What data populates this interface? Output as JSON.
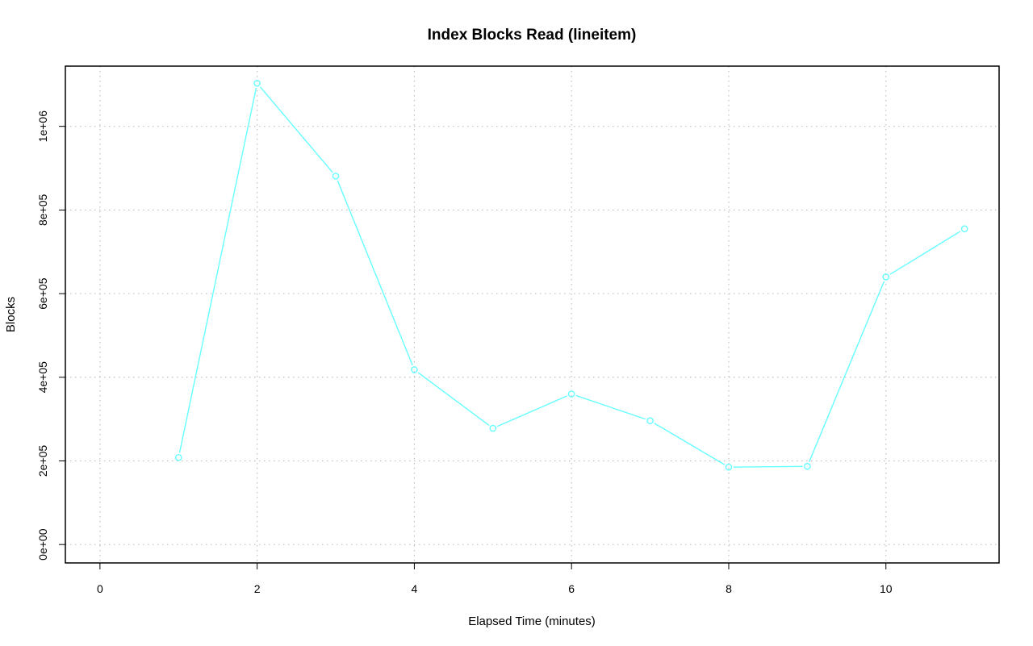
{
  "chart_data": {
    "type": "line",
    "title": "Index Blocks Read (lineitem)",
    "xlabel": "Elapsed Time (minutes)",
    "ylabel": "Blocks",
    "xlim": [
      -0.44,
      11.44
    ],
    "ylim": [
      -44000,
      1144000
    ],
    "x_ticks": [
      0,
      2,
      4,
      6,
      8,
      10
    ],
    "x_tick_labels": [
      "0",
      "2",
      "4",
      "6",
      "8",
      "10"
    ],
    "y_ticks": [
      0,
      200000,
      400000,
      600000,
      800000,
      1000000
    ],
    "y_tick_labels": [
      "0e+00",
      "2e+05",
      "4e+05",
      "6e+05",
      "8e+05",
      "1e+06"
    ],
    "grid": true,
    "series": [
      {
        "color": "#66ffff",
        "x": [
          1,
          2,
          3,
          4,
          5,
          6,
          7,
          8,
          9,
          10,
          11
        ],
        "y": [
          208000,
          1103000,
          881000,
          418000,
          278000,
          360000,
          296000,
          185000,
          187000,
          640000,
          755000
        ]
      }
    ]
  }
}
